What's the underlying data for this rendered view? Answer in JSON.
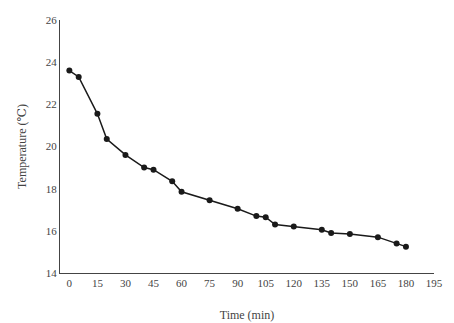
{
  "chart_data": {
    "type": "line",
    "x": [
      0,
      5,
      15,
      20,
      30,
      40,
      45,
      55,
      60,
      75,
      90,
      100,
      105,
      110,
      120,
      135,
      140,
      150,
      165,
      175,
      180
    ],
    "values": [
      23.6,
      23.3,
      21.55,
      20.35,
      19.6,
      19.0,
      18.9,
      18.35,
      17.85,
      17.45,
      17.05,
      16.7,
      16.65,
      16.3,
      16.2,
      16.05,
      15.9,
      15.85,
      15.7,
      15.4,
      15.25
    ],
    "xlabel": "Time (min)",
    "ylabel": "Temperature (℃)",
    "xlim": [
      -5,
      195
    ],
    "ylim": [
      14,
      26
    ],
    "xticks": [
      0,
      15,
      30,
      45,
      60,
      75,
      90,
      105,
      120,
      135,
      150,
      165,
      180,
      195
    ],
    "yticks": [
      14,
      16,
      18,
      20,
      22,
      24,
      26
    ],
    "color": "#1a1a1a",
    "marker": "circle",
    "line_style": "solid",
    "grid": false
  }
}
